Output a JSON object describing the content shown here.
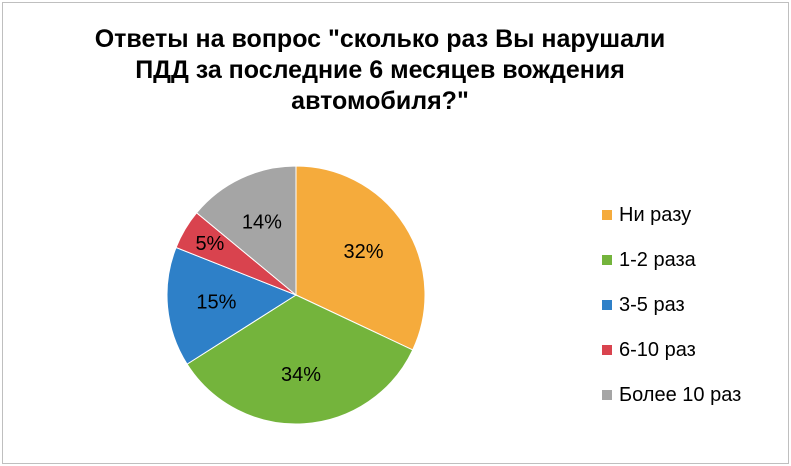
{
  "chart_data": {
    "type": "pie",
    "title": "Ответы на вопрос \"сколько раз Вы нарушали ПДД за последние 6 месяцев вождения автомобиля?\"",
    "title_lines": [
      "Ответы на вопрос \"сколько раз Вы нарушали",
      "ПДД за последние 6 месяцев вождения",
      "автомобиля?\""
    ],
    "categories": [
      "Ни разу",
      "1-2 раза",
      "3-5 раз",
      "6-10 раз",
      "Более 10 раз"
    ],
    "values": [
      32,
      34,
      15,
      5,
      14
    ],
    "labels": [
      "32%",
      "34%",
      "15%",
      "5%",
      "14%"
    ],
    "colors": [
      "#F5AB3C",
      "#74B43C",
      "#2E80C8",
      "#D9434E",
      "#A5A5A5"
    ],
    "legend_position": "right"
  }
}
